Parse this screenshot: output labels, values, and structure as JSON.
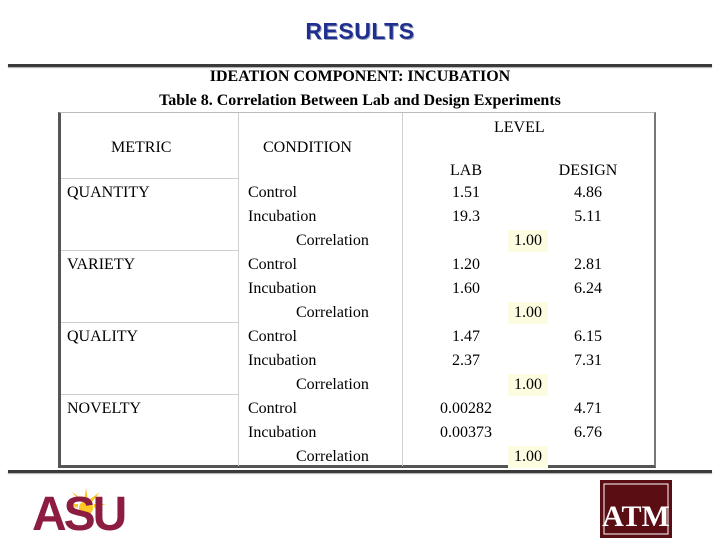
{
  "slide": {
    "title": "RESULTS",
    "caption_line1": "IDEATION COMPONENT: INCUBATION",
    "caption_line2": "Table 8. Correlation Between Lab and Design Experiments"
  },
  "table": {
    "headers": {
      "metric": "METRIC",
      "condition": "CONDITION",
      "level": "LEVEL",
      "lab": "LAB",
      "design": "DESIGN"
    },
    "groups": [
      {
        "metric": "QUANTITY",
        "rows": [
          {
            "condition": "Control",
            "lab": "1.51",
            "design": "4.86"
          },
          {
            "condition": "Incubation",
            "lab": "19.3",
            "design": "5.11"
          }
        ],
        "correlation_label": "Correlation",
        "correlation": "1.00"
      },
      {
        "metric": "VARIETY",
        "rows": [
          {
            "condition": "Control",
            "lab": "1.20",
            "design": "2.81"
          },
          {
            "condition": "Incubation",
            "lab": "1.60",
            "design": "6.24"
          }
        ],
        "correlation_label": "Correlation",
        "correlation": "1.00"
      },
      {
        "metric": "QUALITY",
        "rows": [
          {
            "condition": "Control",
            "lab": "1.47",
            "design": "6.15"
          },
          {
            "condition": "Incubation",
            "lab": "2.37",
            "design": "7.31"
          }
        ],
        "correlation_label": "Correlation",
        "correlation": "1.00"
      },
      {
        "metric": "NOVELTY",
        "rows": [
          {
            "condition": "Control",
            "lab": "0.00282",
            "design": "4.71"
          },
          {
            "condition": "Incubation",
            "lab": "0.00373",
            "design": "6.76"
          }
        ],
        "correlation_label": "Correlation",
        "correlation": "1.00"
      }
    ]
  },
  "logos": {
    "left": "ASU",
    "right": "ATM"
  },
  "colors": {
    "title": "#1f2f8f",
    "asu_maroon": "#8c1d40",
    "asu_gold": "#ffc627",
    "tamu_maroon": "#5a0e14",
    "highlight": "#fdfbe0"
  }
}
